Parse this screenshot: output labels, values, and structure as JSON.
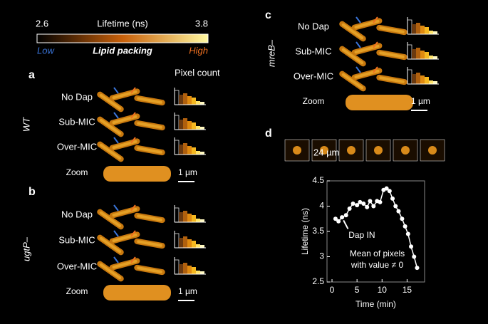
{
  "colorbar": {
    "min_label": "2.6",
    "title": "Lifetime (ns)",
    "max_label": "3.8",
    "low": "Low",
    "middle": "Lipid packing",
    "high": "High"
  },
  "panel_a": {
    "letter": "a",
    "pixel_count": "Pixel count",
    "strain": "WT",
    "rows": [
      "No Dap",
      "Sub-MIC",
      "Over-MIC",
      "Zoom"
    ],
    "scale": "1 µm"
  },
  "panel_b": {
    "letter": "b",
    "strain": "ugtP–",
    "rows": [
      "No Dap",
      "Sub-MIC",
      "Over-MIC",
      "Zoom"
    ],
    "scale": "1 µm"
  },
  "panel_c": {
    "letter": "c",
    "strain": "mreB–",
    "rows": [
      "No Dap",
      "Sub-MIC",
      "Over-MIC",
      "Zoom"
    ],
    "scale": "1 µm"
  },
  "panel_d": {
    "letter": "d",
    "scale": "24 µm"
  },
  "chart_data": {
    "type": "line",
    "x_label": "Time (min)",
    "y_label": "Lifetime (ns)",
    "annotation": "Dap IN",
    "note": [
      "Mean of pixels",
      "with value ≠ 0"
    ],
    "x": [
      0.7,
      1.3,
      2,
      2.8,
      3.5,
      4.2,
      5,
      5.6,
      6.3,
      7,
      7.6,
      8.3,
      9,
      9.6,
      10.3,
      10.9,
      11.5,
      12.1,
      12.7,
      13.3,
      14,
      14.6,
      15.2,
      15.8,
      16.4,
      17
    ],
    "values": [
      3.75,
      3.7,
      3.78,
      3.82,
      3.95,
      4.05,
      4.02,
      4.08,
      4.05,
      3.98,
      4.1,
      4.0,
      4.1,
      4.08,
      4.32,
      4.35,
      4.3,
      4.15,
      4.0,
      3.9,
      3.75,
      3.6,
      3.45,
      3.2,
      3.0,
      2.78
    ],
    "color": "#ffffff",
    "xlim": [
      -1,
      18.5
    ],
    "ylim": [
      2.5,
      4.5
    ],
    "xticks": [
      0,
      5,
      10,
      15
    ],
    "yticks": [
      2.5,
      3,
      3.5,
      4,
      4.5
    ]
  }
}
